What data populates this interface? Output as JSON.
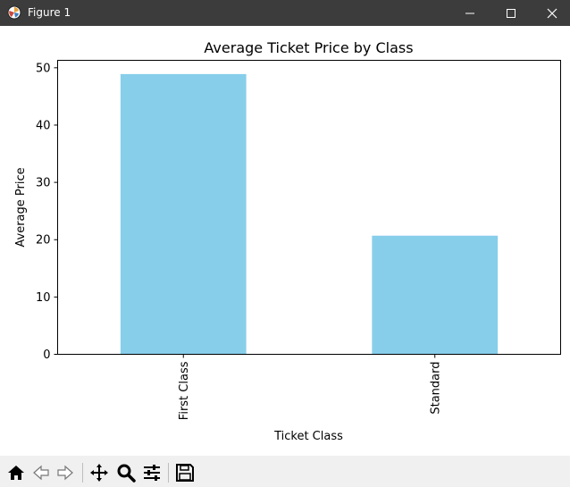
{
  "window": {
    "title": "Figure 1",
    "icon": "matplotlib-icon",
    "controls": [
      "minimize-icon",
      "maximize-icon",
      "close-icon"
    ]
  },
  "toolbar": {
    "buttons": [
      "home-icon",
      "back-arrow-icon",
      "forward-arrow-icon",
      "pan-icon",
      "zoom-icon",
      "configure-subplots-icon",
      "save-icon"
    ]
  },
  "chart_data": {
    "type": "bar",
    "title": "Average Ticket Price by Class",
    "xlabel": "Ticket Class",
    "ylabel": "Average Price",
    "categories": [
      "First Class",
      "Standard"
    ],
    "values": [
      48.9,
      20.7
    ],
    "ylim": [
      0,
      51.3
    ],
    "yticks": [
      0,
      10,
      20,
      30,
      40,
      50
    ],
    "bar_color": "#87ceeb",
    "grid": false
  }
}
